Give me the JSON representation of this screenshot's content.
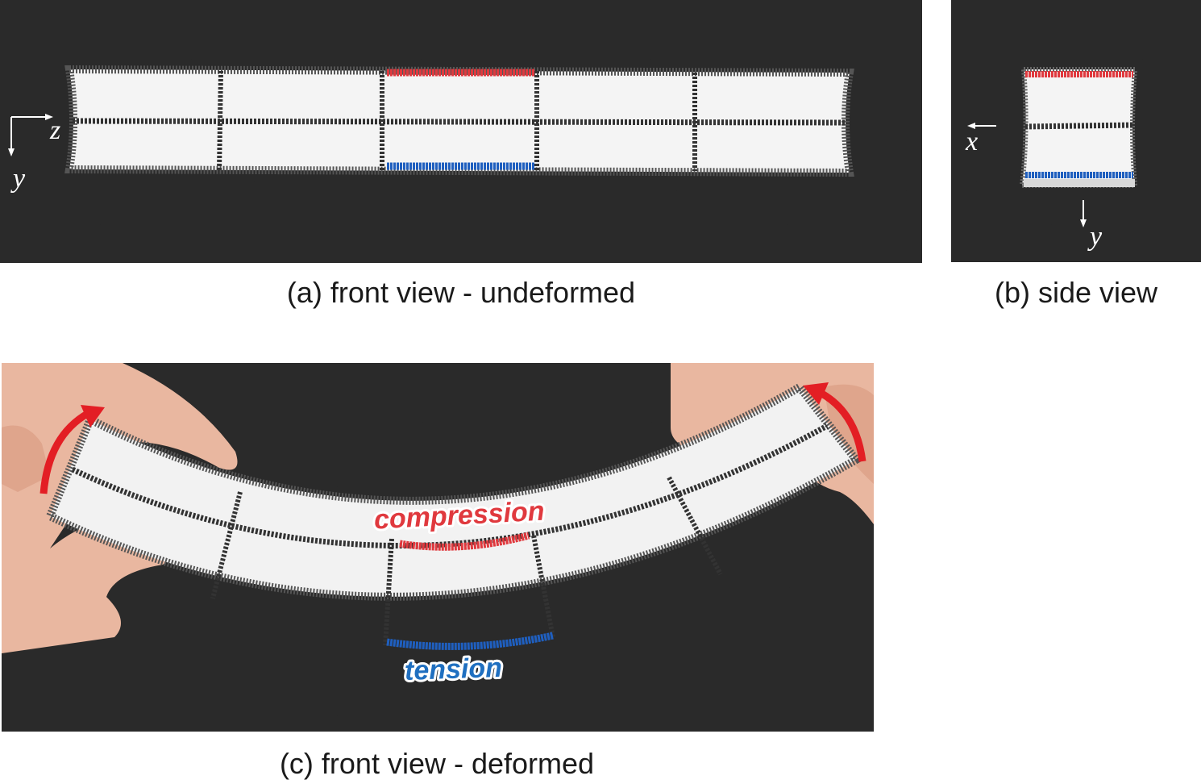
{
  "captions": {
    "a": "(a) front view - undeformed",
    "b": "(b) side view",
    "c": "(c) front view - deformed"
  },
  "axes": {
    "front_horizontal": "z",
    "front_vertical": "y",
    "side_horizontal": "x",
    "side_vertical": "y"
  },
  "annotations": {
    "compression": "compression",
    "tension": "tension"
  },
  "colors": {
    "background": "#1f1f1f",
    "foam": "#f3f3f3",
    "grid_lines": "#2a2a2a",
    "compression": "#e0393e",
    "tension": "#1f5fbf",
    "arrows": "#e31e24"
  }
}
